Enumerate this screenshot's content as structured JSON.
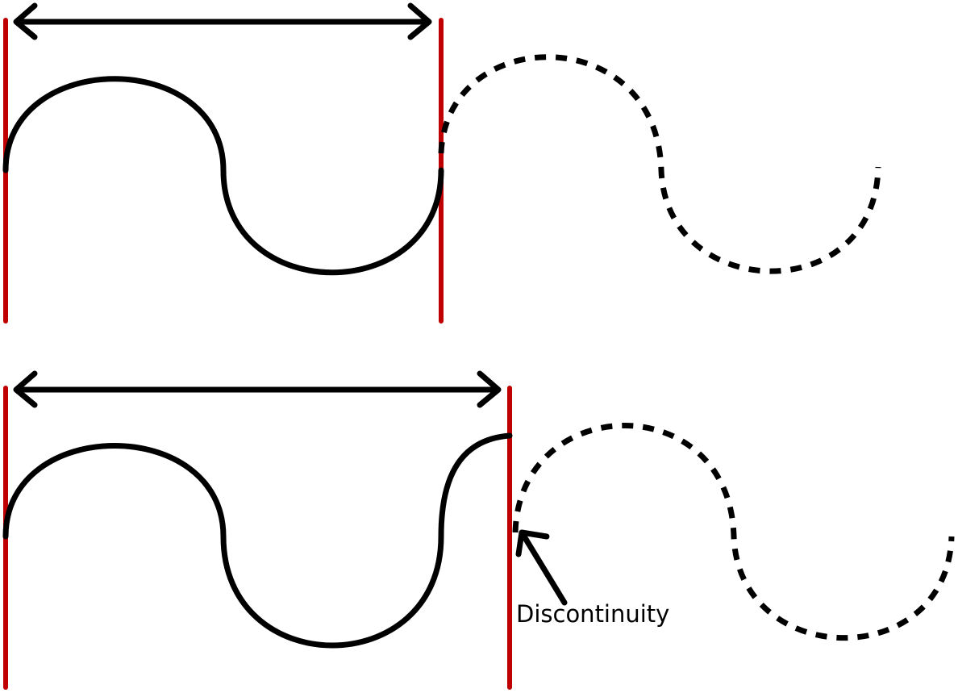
{
  "colors": {
    "wave": "#000000",
    "boundary": "#c00000",
    "arrow": "#000000",
    "text": "#000000",
    "background": "#ffffff"
  },
  "labels": {
    "discontinuity": "Discontinuity"
  }
}
